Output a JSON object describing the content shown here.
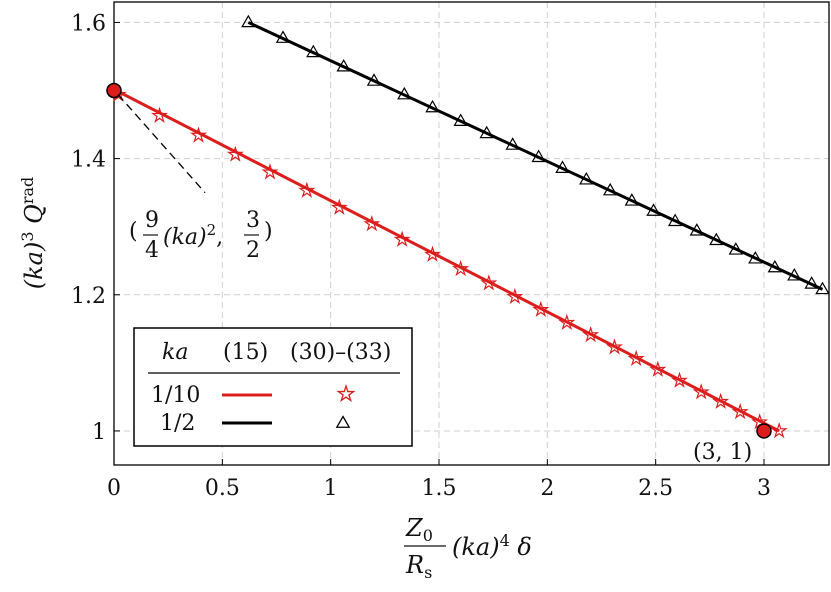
{
  "chart_data": {
    "type": "line",
    "title": "",
    "xlabel": "Z0/Rs (ka)^4 δ",
    "ylabel": "(ka)^3 Q^rad",
    "xlim": [
      0,
      3.3
    ],
    "ylim": [
      0.95,
      1.63
    ],
    "grid": true,
    "x_ticks": [
      {
        "value": 0,
        "label": "0"
      },
      {
        "value": 0.5,
        "label": "0.5"
      },
      {
        "value": 1,
        "label": "1"
      },
      {
        "value": 1.5,
        "label": "1.5"
      },
      {
        "value": 2,
        "label": "2"
      },
      {
        "value": 2.5,
        "label": "2.5"
      },
      {
        "value": 3,
        "label": "3"
      }
    ],
    "y_ticks": [
      {
        "value": 1.0,
        "label": "1"
      },
      {
        "value": 1.2,
        "label": "1.2"
      },
      {
        "value": 1.4,
        "label": "1.4"
      },
      {
        "value": 1.6,
        "label": "1.6"
      }
    ],
    "series": [
      {
        "name": "1/10",
        "color": "#dd1c1c",
        "marker": "star",
        "line": {
          "x": [
            0.01,
            3.07
          ],
          "y": [
            1.5,
            1.0
          ]
        },
        "points": {
          "x": [
            0.02,
            0.21,
            0.39,
            0.56,
            0.72,
            0.89,
            1.04,
            1.19,
            1.33,
            1.47,
            1.6,
            1.73,
            1.85,
            1.97,
            2.09,
            2.2,
            2.31,
            2.41,
            2.51,
            2.61,
            2.71,
            2.8,
            2.89,
            2.98,
            3.07
          ],
          "y": [
            1.494,
            1.463,
            1.434,
            1.406,
            1.38,
            1.353,
            1.328,
            1.304,
            1.281,
            1.259,
            1.238,
            1.217,
            1.197,
            1.178,
            1.159,
            1.141,
            1.123,
            1.106,
            1.09,
            1.074,
            1.057,
            1.043,
            1.028,
            1.013,
            1.0
          ]
        }
      },
      {
        "name": "1/2",
        "color": "#000000",
        "marker": "triangle",
        "line": {
          "x": [
            0.62,
            3.27
          ],
          "y": [
            1.6,
            1.208
          ]
        },
        "points": {
          "x": [
            0.62,
            0.78,
            0.92,
            1.06,
            1.2,
            1.34,
            1.47,
            1.6,
            1.72,
            1.84,
            1.96,
            2.07,
            2.18,
            2.29,
            2.39,
            2.49,
            2.59,
            2.69,
            2.78,
            2.87,
            2.96,
            3.05,
            3.14,
            3.22,
            3.27
          ],
          "y": [
            1.6,
            1.577,
            1.556,
            1.535,
            1.514,
            1.494,
            1.475,
            1.455,
            1.437,
            1.42,
            1.402,
            1.386,
            1.369,
            1.353,
            1.338,
            1.323,
            1.308,
            1.294,
            1.28,
            1.266,
            1.253,
            1.24,
            1.228,
            1.216,
            1.208
          ]
        }
      }
    ],
    "special_points": [
      {
        "x": 0.0,
        "y": 1.5
      },
      {
        "x": 3.0,
        "y": 1.0
      }
    ],
    "annotations": [
      {
        "text": "(9/4 (ka)^2, 3/2)",
        "dashed_to": {
          "x": 0.0,
          "y": 1.5
        }
      },
      {
        "text": "(3, 1)"
      }
    ],
    "legend": {
      "placement": "bottom-left",
      "header": [
        "ka",
        "(15)",
        "(30)–(33)"
      ],
      "rows": [
        "1/10",
        "1/2"
      ]
    }
  }
}
